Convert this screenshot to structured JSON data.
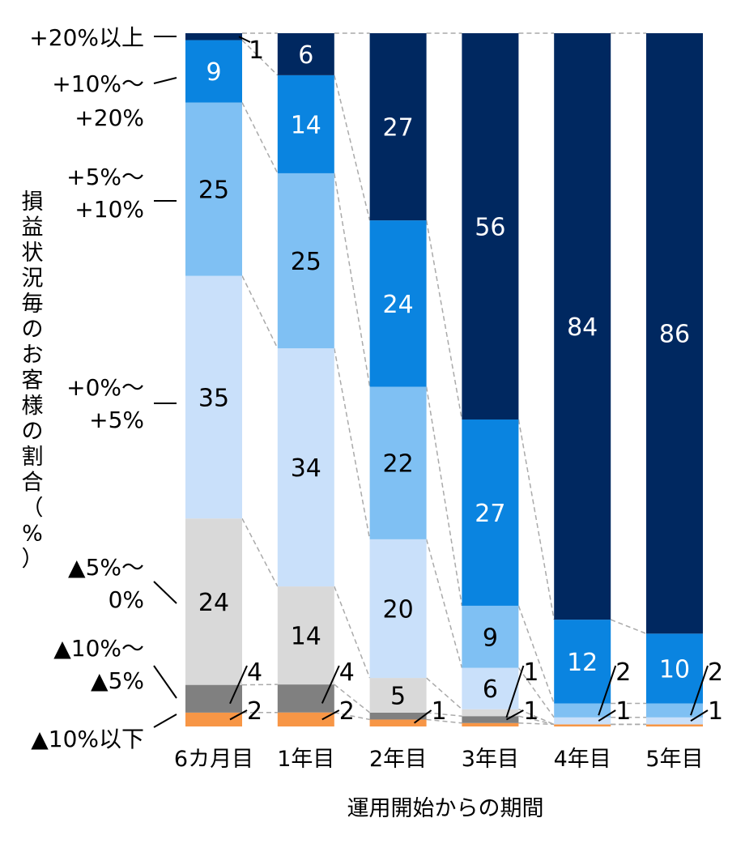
{
  "chart_data": {
    "type": "bar",
    "stacked": true,
    "ylabel": "損益状況毎のお客様の割合（%）",
    "xlabel": "運用開始からの期間",
    "ylim": [
      0,
      100
    ],
    "grid": false,
    "categories": [
      "6カ月目",
      "1年目",
      "2年目",
      "3年目",
      "4年目",
      "5年目"
    ],
    "series": [
      {
        "name": "▲10%以下",
        "color": "#f79646",
        "values": [
          2,
          2,
          1,
          0.5,
          0.3,
          0.3
        ],
        "labels": [
          "2",
          "2",
          "1",
          null,
          null,
          null
        ]
      },
      {
        "name": "▲10%～▲5%",
        "color": "#808080",
        "values": [
          4,
          4,
          1,
          1,
          0,
          0
        ],
        "labels": [
          "4",
          "4",
          null,
          "1",
          null,
          null
        ]
      },
      {
        "name": "▲5%～0%",
        "color": "#d9d9d9",
        "values": [
          24,
          14,
          5,
          1,
          0,
          0
        ],
        "labels": [
          "24",
          "14",
          "5",
          "1",
          null,
          null
        ]
      },
      {
        "name": "+0%～+5%",
        "color": "#c9e0fa",
        "values": [
          35,
          34,
          20,
          6,
          1,
          1
        ],
        "labels": [
          "35",
          "34",
          "20",
          "6",
          "1",
          "1"
        ]
      },
      {
        "name": "+5%～+10%",
        "color": "#7fc0f3",
        "values": [
          25,
          25,
          22,
          9,
          2,
          2
        ],
        "labels": [
          "25",
          "25",
          "22",
          "9",
          "2",
          "2"
        ]
      },
      {
        "name": "+10%～+20%",
        "color": "#0a84e0",
        "values": [
          9,
          14,
          24,
          27,
          12,
          10
        ],
        "labels": [
          "9",
          "14",
          "24",
          "27",
          "12",
          "10"
        ]
      },
      {
        "name": "+20%以上",
        "color": "#002860",
        "values": [
          1,
          6,
          27,
          56,
          84,
          86
        ],
        "labels": [
          "1",
          "6",
          "27",
          "56",
          "84",
          "86"
        ]
      }
    ],
    "legend_labels": [
      [
        "+20%以上"
      ],
      [
        "+10%～",
        "+20%"
      ],
      [
        "+5%～",
        "+10%"
      ],
      [
        "+0%～",
        "+5%"
      ],
      [
        "▲5%～",
        "0%"
      ],
      [
        "▲10%～",
        "▲5%"
      ],
      [
        "▲10%以下"
      ]
    ],
    "legend_placement": "left"
  }
}
